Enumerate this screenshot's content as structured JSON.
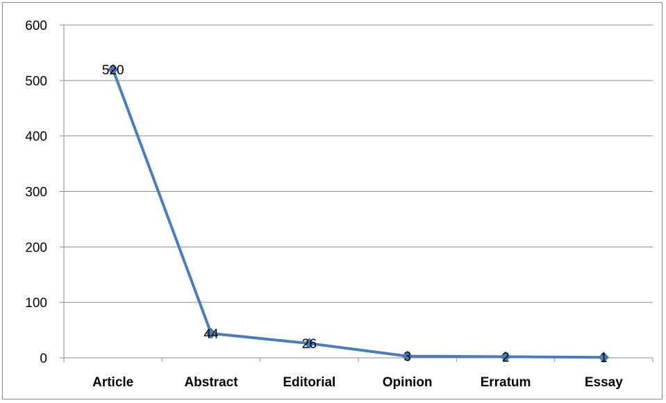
{
  "chart_data": {
    "type": "line",
    "categories": [
      "Article",
      "Abstract",
      "Editorial",
      "Opinion",
      "Erratum",
      "Essay"
    ],
    "series": [
      {
        "values": [
          520,
          44,
          26,
          3,
          2,
          1
        ]
      }
    ],
    "data_labels": [
      "520",
      "44",
      "26",
      "3",
      "2",
      "1"
    ],
    "y_ticks": [
      0,
      100,
      200,
      300,
      400,
      500,
      600
    ],
    "ylim": [
      0,
      600
    ],
    "grid": true,
    "legend": "none",
    "colors": {
      "line": "#4a7ebb",
      "marker": "#4a7ebb",
      "grid": "#8c8c8c",
      "axis": "#8c8c8c"
    }
  }
}
